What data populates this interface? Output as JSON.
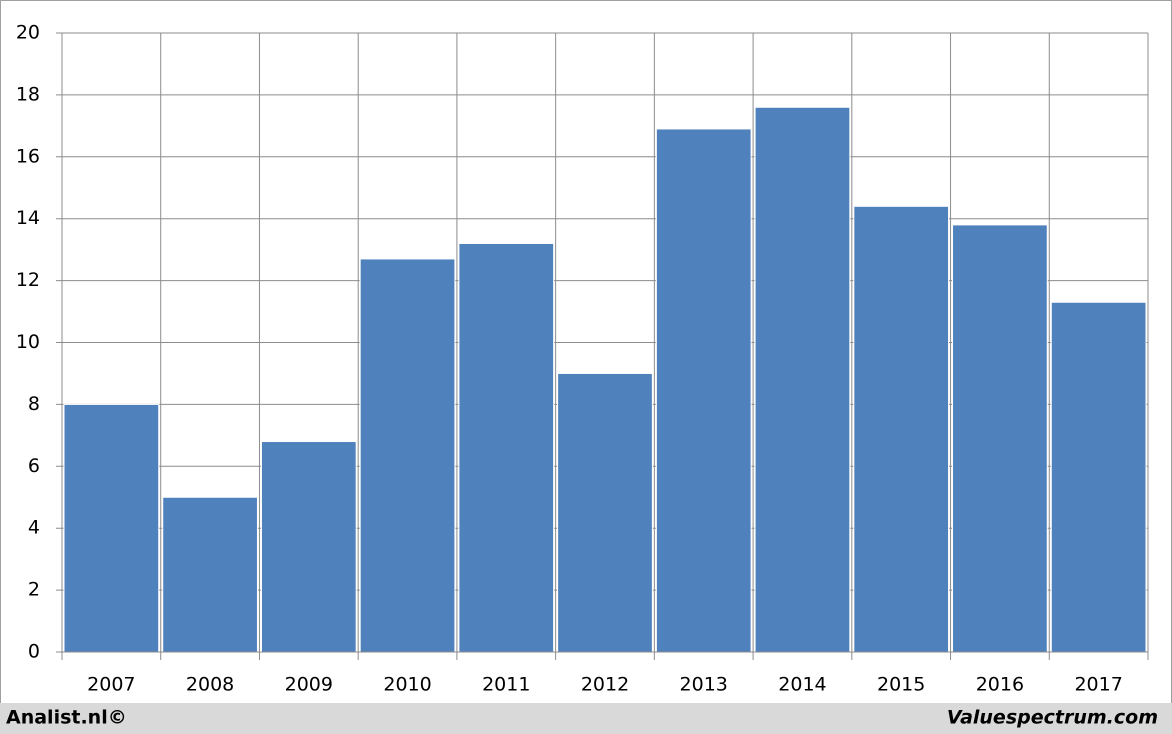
{
  "chart_data": {
    "type": "bar",
    "categories": [
      "2007",
      "2008",
      "2009",
      "2010",
      "2011",
      "2012",
      "2013",
      "2014",
      "2015",
      "2016",
      "2017"
    ],
    "values": [
      8.0,
      5.0,
      6.8,
      12.7,
      13.2,
      9.0,
      16.9,
      17.6,
      14.4,
      13.8,
      11.3
    ],
    "color": "#4f81bd",
    "ylim": [
      0,
      20
    ],
    "yticks": [
      0,
      2,
      4,
      6,
      8,
      10,
      12,
      14,
      16,
      18,
      20
    ],
    "grid": true
  },
  "footer": {
    "left": "Analist.nl©",
    "right": "Valuespectrum.com"
  }
}
